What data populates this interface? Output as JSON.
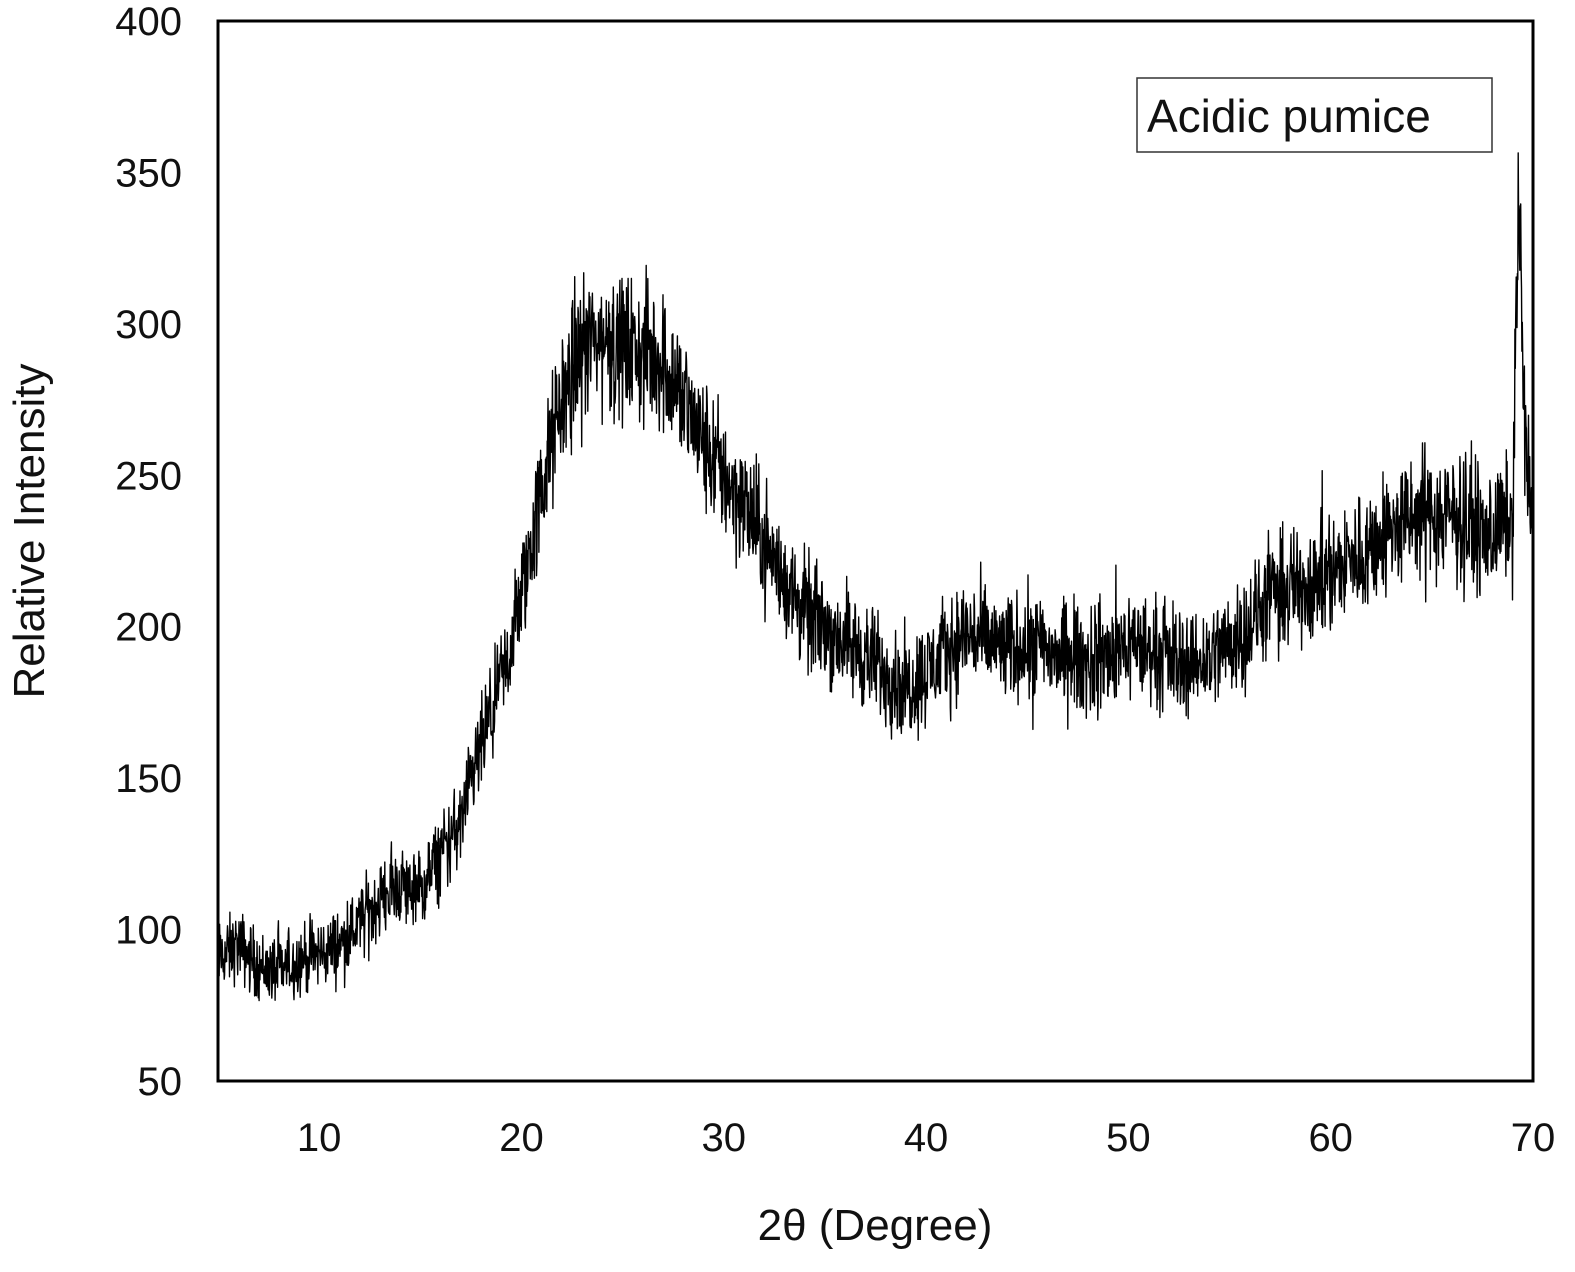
{
  "chart_data": {
    "type": "line",
    "title": "",
    "xlabel": "2θ (Degree)",
    "ylabel": "Relative Intensity",
    "xlim": [
      5,
      70
    ],
    "ylim": [
      50,
      400
    ],
    "xticks": [
      10,
      20,
      30,
      40,
      50,
      60,
      70
    ],
    "yticks": [
      50,
      100,
      150,
      200,
      250,
      300,
      350,
      400
    ],
    "grid": false,
    "legend": {
      "position": "top-right",
      "entries": [
        "Acidic pumice"
      ]
    },
    "line_color": "#000000",
    "series": [
      {
        "name": "Acidic pumice",
        "x": [
          5,
          6,
          7,
          8,
          9,
          10,
          11,
          12,
          13,
          14,
          15,
          16,
          17,
          18,
          19,
          20,
          21,
          22,
          23,
          24,
          25,
          26,
          27,
          28,
          29,
          30,
          31,
          32,
          33,
          34,
          35,
          36,
          37,
          38,
          39,
          40,
          41,
          42,
          43,
          44,
          45,
          46,
          47,
          48,
          49,
          50,
          51,
          52,
          53,
          54,
          55,
          56,
          57,
          58,
          59,
          60,
          61,
          62,
          63,
          64,
          65,
          66,
          67,
          68,
          69,
          69.3,
          69.6,
          70
        ],
        "y": [
          90,
          95,
          88,
          86,
          90,
          92,
          95,
          102,
          110,
          115,
          112,
          125,
          135,
          160,
          180,
          210,
          245,
          275,
          292,
          295,
          292,
          290,
          288,
          275,
          260,
          250,
          240,
          228,
          215,
          205,
          200,
          195,
          190,
          185,
          180,
          185,
          192,
          198,
          195,
          192,
          195,
          192,
          190,
          188,
          190,
          195,
          192,
          190,
          188,
          190,
          195,
          200,
          210,
          212,
          215,
          218,
          222,
          226,
          232,
          235,
          238,
          236,
          234,
          230,
          238,
          345,
          260,
          236
        ]
      }
    ]
  }
}
